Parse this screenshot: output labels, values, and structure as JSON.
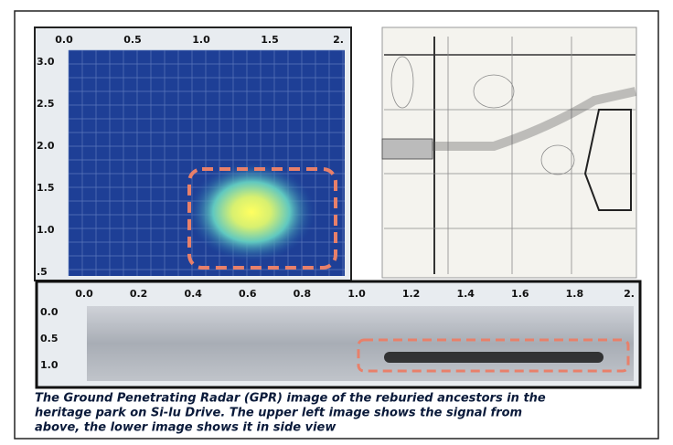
{
  "top_view": {
    "x_ticks": [
      "0.0",
      "0.5",
      "1.0",
      "1.5",
      "2."
    ],
    "y_ticks": [
      "3.0",
      "2.5",
      "2.0",
      "1.5",
      "1.0",
      ".5"
    ]
  },
  "side_view": {
    "x_ticks": [
      "0.0",
      "0.2",
      "0.4",
      "0.6",
      "0.8",
      "1.0",
      "1.2",
      "1.4",
      "1.6",
      "1.8",
      "2."
    ],
    "y_ticks": [
      "0.0",
      "0.5",
      "1.0"
    ]
  },
  "caption": [
    "The Ground Penetrating Radar (GPR) image of the reburied ancestors in the",
    "heritage park on Si-lu Drive. The upper left image shows the signal from",
    "above, the lower image shows it in side view"
  ]
}
